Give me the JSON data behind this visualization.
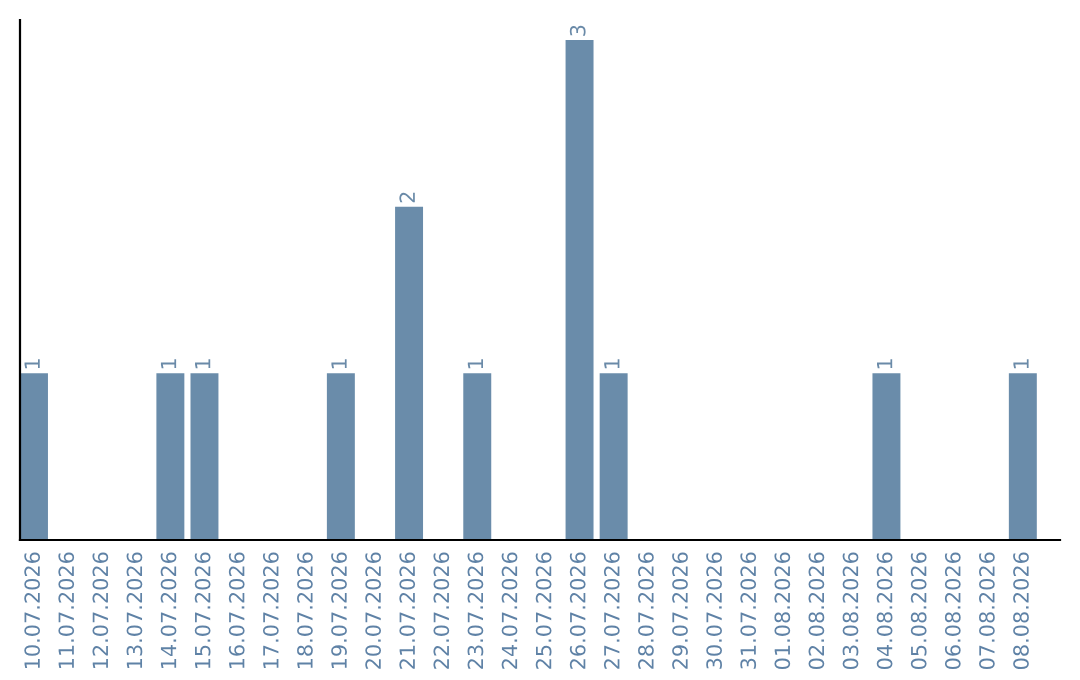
{
  "chart_data": {
    "type": "bar",
    "categories": [
      "10.07.2026",
      "11.07.2026",
      "12.07.2026",
      "13.07.2026",
      "14.07.2026",
      "15.07.2026",
      "16.07.2026",
      "17.07.2026",
      "18.07.2026",
      "19.07.2026",
      "20.07.2026",
      "21.07.2026",
      "22.07.2026",
      "23.07.2026",
      "24.07.2026",
      "25.07.2026",
      "26.07.2026",
      "27.07.2026",
      "28.07.2026",
      "29.07.2026",
      "30.07.2026",
      "31.07.2026",
      "01.08.2026",
      "02.08.2026",
      "03.08.2026",
      "04.08.2026",
      "05.08.2026",
      "06.08.2026",
      "07.08.2026",
      "08.08.2026"
    ],
    "values": [
      1,
      0,
      0,
      0,
      1,
      1,
      0,
      0,
      0,
      1,
      0,
      2,
      0,
      1,
      0,
      0,
      3,
      1,
      0,
      0,
      0,
      0,
      0,
      0,
      0,
      1,
      0,
      0,
      0,
      1
    ],
    "value_labels": [
      "1",
      null,
      null,
      null,
      "1",
      "1",
      null,
      null,
      null,
      "1",
      null,
      "2",
      null,
      "1",
      null,
      null,
      "3",
      "1",
      null,
      null,
      null,
      null,
      null,
      null,
      null,
      "1",
      null,
      null,
      null,
      "1"
    ],
    "color": "#6a8caa",
    "tick_labels": "x",
    "grid": false,
    "legend": false
  }
}
